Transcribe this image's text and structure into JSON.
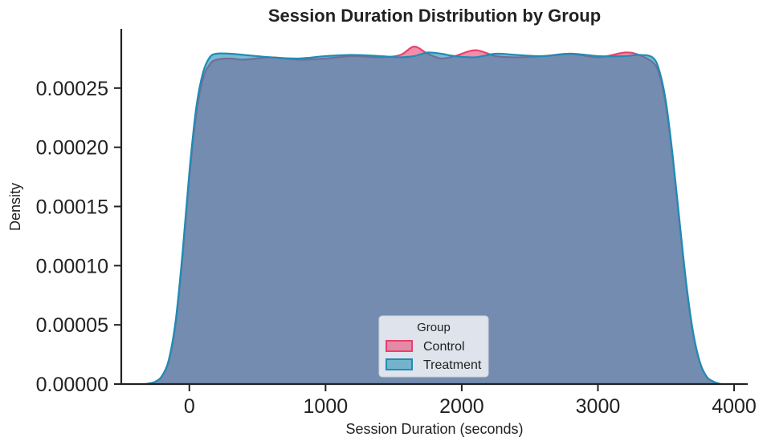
{
  "chart_data": {
    "type": "area",
    "title": "Session Duration Distribution by Group",
    "xlabel": "Session Duration (seconds)",
    "ylabel": "Density",
    "xlim": [
      -500,
      4100
    ],
    "ylim": [
      0,
      0.0003
    ],
    "xticks": [
      0,
      1000,
      2000,
      3000,
      4000
    ],
    "xtick_labels": [
      "0",
      "1000",
      "2000",
      "3000",
      "4000"
    ],
    "yticks": [
      0,
      5e-05,
      0.0001,
      0.00015,
      0.0002,
      0.00025
    ],
    "ytick_labels": [
      "0.00000",
      "0.00005",
      "0.00010",
      "0.00015",
      "0.00020",
      "0.00025"
    ],
    "grid": false,
    "legend": {
      "title": "Group",
      "placement": "lower-center"
    },
    "series": [
      {
        "name": "Control",
        "color": "#e8416f",
        "x": [
          -320,
          -250,
          -200,
          -150,
          -100,
          -50,
          0,
          50,
          100,
          150,
          200,
          300,
          400,
          600,
          800,
          1000,
          1200,
          1400,
          1550,
          1650,
          1750,
          1850,
          1950,
          2100,
          2250,
          2400,
          2600,
          2800,
          3000,
          3200,
          3300,
          3400,
          3450,
          3500,
          3550,
          3600,
          3650,
          3700,
          3750,
          3800,
          3850,
          3900
        ],
        "y": [
          0,
          2e-06,
          7e-06,
          2e-05,
          5.2e-05,
          0.000108,
          0.000175,
          0.000228,
          0.000258,
          0.00027,
          0.000274,
          0.000275,
          0.000274,
          0.000276,
          0.000274,
          0.000275,
          0.000277,
          0.000276,
          0.000278,
          0.000285,
          0.000279,
          0.000275,
          0.000277,
          0.000282,
          0.000277,
          0.000276,
          0.000277,
          0.000279,
          0.000276,
          0.00028,
          0.000278,
          0.000272,
          0.000262,
          0.000235,
          0.00019,
          0.000135,
          8.2e-05,
          4.2e-05,
          1.8e-05,
          6e-06,
          2e-06,
          0
        ]
      },
      {
        "name": "Treatment",
        "color": "#1f8cb5",
        "x": [
          -320,
          -250,
          -200,
          -150,
          -100,
          -50,
          0,
          50,
          100,
          150,
          200,
          300,
          400,
          600,
          800,
          1000,
          1200,
          1400,
          1550,
          1650,
          1750,
          1850,
          1950,
          2100,
          2250,
          2400,
          2600,
          2800,
          3000,
          3200,
          3300,
          3400,
          3450,
          3500,
          3550,
          3600,
          3650,
          3700,
          3750,
          3800,
          3850,
          3900
        ],
        "y": [
          0,
          2e-06,
          7e-06,
          2.1e-05,
          5.4e-05,
          0.000111,
          0.000179,
          0.000233,
          0.000263,
          0.000276,
          0.000279,
          0.000279,
          0.000278,
          0.000276,
          0.000275,
          0.000277,
          0.000278,
          0.000277,
          0.000276,
          0.000277,
          0.00028,
          0.000279,
          0.000277,
          0.000276,
          0.000279,
          0.000278,
          0.000277,
          0.000279,
          0.000277,
          0.000277,
          0.000278,
          0.000276,
          0.000265,
          0.000238,
          0.000192,
          0.000137,
          8.4e-05,
          4.3e-05,
          1.8e-05,
          6e-06,
          2e-06,
          0
        ]
      }
    ]
  }
}
